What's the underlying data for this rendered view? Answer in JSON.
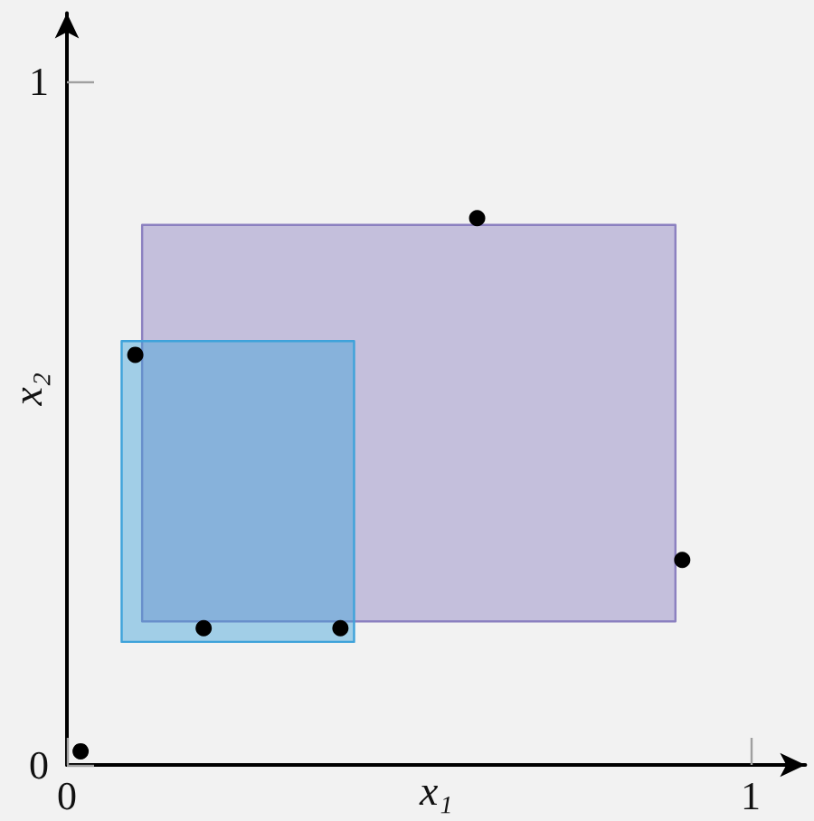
{
  "chart_data": {
    "type": "scatter",
    "xlabel": "x₁",
    "ylabel": "x₂",
    "xlim": [
      0,
      1.08
    ],
    "ylim": [
      0,
      1.1
    ],
    "xticks": [
      0,
      1
    ],
    "yticks": [
      0,
      1
    ],
    "grid": false,
    "series": [
      {
        "type": "area",
        "color": "#8b80c0",
        "x": [
          0.11,
          0.89
        ],
        "values": [
          null,
          null
        ],
        "lower": [
          0.21,
          0.21
        ],
        "upper": [
          0.79,
          0.79
        ]
      },
      {
        "type": "area",
        "color": "#3ea2da",
        "x": [
          0.08,
          0.42
        ],
        "values": [
          null,
          null
        ],
        "lower": [
          0.18,
          0.18
        ],
        "upper": [
          0.62,
          0.62
        ]
      },
      {
        "color": "#000000",
        "marker": "circle",
        "x": [
          0.02,
          0.1,
          0.2,
          0.4,
          0.6,
          0.9
        ],
        "values": [
          0.02,
          0.6,
          0.2,
          0.2,
          0.8,
          0.3
        ]
      }
    ]
  }
}
